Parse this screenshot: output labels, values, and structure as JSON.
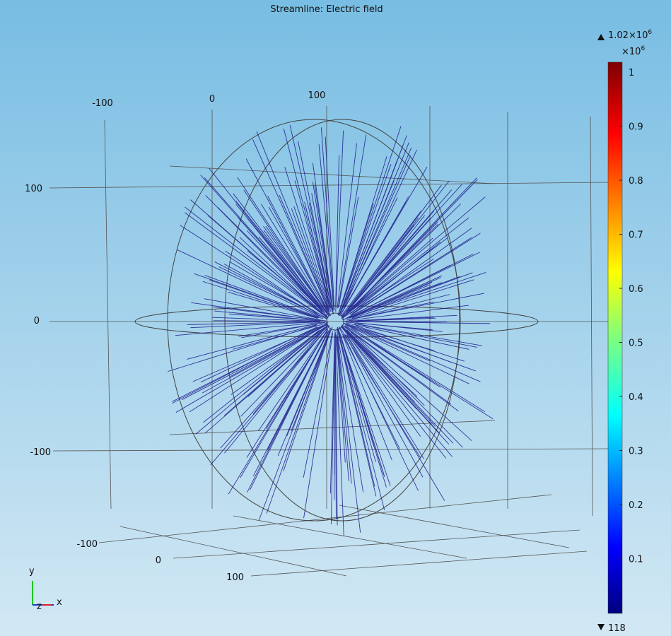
{
  "title": "Streamline: Electric field",
  "colorbar": {
    "max": {
      "mantissa": "1.02×10",
      "exponent": "6"
    },
    "multiplier": {
      "base": "×10",
      "exponent": "6"
    },
    "ticks": [
      "1",
      "0.9",
      "0.8",
      "0.7",
      "0.6",
      "0.5",
      "0.4",
      "0.3",
      "0.2",
      "0.1"
    ],
    "min": "118"
  },
  "axes": {
    "x_top": [
      "-100",
      "0",
      "100"
    ],
    "y_left": [
      "100",
      "0",
      "-100"
    ],
    "z_bottom": [
      "-100",
      "0",
      "100"
    ]
  },
  "triad": {
    "y": "y",
    "z": "z",
    "x": "x"
  }
}
